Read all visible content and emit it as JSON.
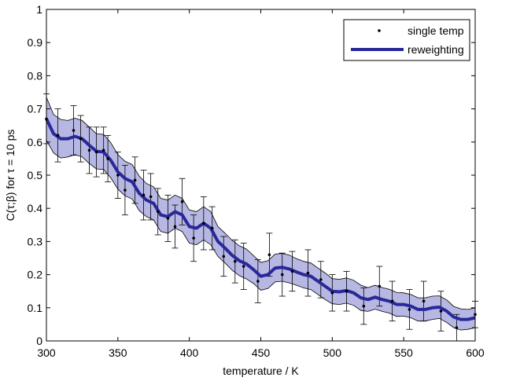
{
  "chart_data": {
    "type": "line",
    "xlabel": "temperature / K",
    "ylabel": "C(τ;β) for τ = 10 ps",
    "xlim": [
      300,
      600
    ],
    "ylim": [
      0,
      1
    ],
    "xticks": [
      300,
      350,
      400,
      450,
      500,
      550,
      600
    ],
    "yticks": [
      0,
      0.1,
      0.2,
      0.3,
      0.4,
      0.5,
      0.6,
      0.7,
      0.8,
      0.9,
      1
    ],
    "grid": false,
    "legend_position": "top-right",
    "colors": {
      "reweighting": "#28289a",
      "band_fill": "#b7b7e3",
      "band_edge": "#000000",
      "points": "#000000"
    },
    "series": [
      {
        "name": "single temp",
        "style": "points-with-errorbars",
        "points": [
          {
            "x": 300,
            "y": 0.67,
            "err": 0.075
          },
          {
            "x": 308,
            "y": 0.62,
            "err": 0.08
          },
          {
            "x": 319,
            "y": 0.635,
            "err": 0.075
          },
          {
            "x": 324,
            "y": 0.61,
            "err": 0.07
          },
          {
            "x": 330,
            "y": 0.575,
            "err": 0.07
          },
          {
            "x": 335,
            "y": 0.57,
            "err": 0.075
          },
          {
            "x": 340,
            "y": 0.575,
            "err": 0.07
          },
          {
            "x": 343,
            "y": 0.55,
            "err": 0.07
          },
          {
            "x": 350,
            "y": 0.5,
            "err": 0.07
          },
          {
            "x": 355,
            "y": 0.455,
            "err": 0.075
          },
          {
            "x": 362,
            "y": 0.485,
            "err": 0.07
          },
          {
            "x": 368,
            "y": 0.44,
            "err": 0.075
          },
          {
            "x": 373,
            "y": 0.435,
            "err": 0.07
          },
          {
            "x": 378,
            "y": 0.39,
            "err": 0.07
          },
          {
            "x": 385,
            "y": 0.37,
            "err": 0.07
          },
          {
            "x": 390,
            "y": 0.345,
            "err": 0.065
          },
          {
            "x": 395,
            "y": 0.42,
            "err": 0.07
          },
          {
            "x": 403,
            "y": 0.31,
            "err": 0.07
          },
          {
            "x": 410,
            "y": 0.355,
            "err": 0.08
          },
          {
            "x": 416,
            "y": 0.34,
            "err": 0.065
          },
          {
            "x": 424,
            "y": 0.255,
            "err": 0.06
          },
          {
            "x": 432,
            "y": 0.24,
            "err": 0.065
          },
          {
            "x": 438,
            "y": 0.225,
            "err": 0.07
          },
          {
            "x": 448,
            "y": 0.18,
            "err": 0.065
          },
          {
            "x": 456,
            "y": 0.26,
            "err": 0.065
          },
          {
            "x": 465,
            "y": 0.2,
            "err": 0.065
          },
          {
            "x": 472,
            "y": 0.21,
            "err": 0.06
          },
          {
            "x": 483,
            "y": 0.205,
            "err": 0.07
          },
          {
            "x": 492,
            "y": 0.185,
            "err": 0.055
          },
          {
            "x": 500,
            "y": 0.145,
            "err": 0.055
          },
          {
            "x": 510,
            "y": 0.15,
            "err": 0.06
          },
          {
            "x": 522,
            "y": 0.105,
            "err": 0.055
          },
          {
            "x": 533,
            "y": 0.165,
            "err": 0.06
          },
          {
            "x": 542,
            "y": 0.12,
            "err": 0.06
          },
          {
            "x": 554,
            "y": 0.095,
            "err": 0.06
          },
          {
            "x": 564,
            "y": 0.12,
            "err": 0.06
          },
          {
            "x": 576,
            "y": 0.09,
            "err": 0.06
          },
          {
            "x": 587,
            "y": 0.04,
            "err": 0.04
          },
          {
            "x": 600,
            "y": 0.08,
            "err": 0.04
          }
        ]
      },
      {
        "name": "reweighting",
        "style": "line-with-band",
        "x": [
          300,
          305,
          310,
          315,
          320,
          325,
          330,
          335,
          340,
          345,
          350,
          355,
          360,
          365,
          370,
          375,
          380,
          385,
          390,
          395,
          400,
          405,
          410,
          415,
          420,
          425,
          430,
          435,
          440,
          445,
          450,
          455,
          460,
          465,
          470,
          475,
          480,
          485,
          490,
          495,
          500,
          505,
          510,
          515,
          520,
          525,
          530,
          535,
          540,
          545,
          550,
          555,
          560,
          565,
          570,
          575,
          580,
          585,
          590,
          595,
          600
        ],
        "y": [
          0.67,
          0.625,
          0.61,
          0.61,
          0.617,
          0.61,
          0.59,
          0.572,
          0.57,
          0.545,
          0.51,
          0.49,
          0.48,
          0.445,
          0.425,
          0.415,
          0.38,
          0.375,
          0.39,
          0.38,
          0.345,
          0.34,
          0.355,
          0.34,
          0.3,
          0.28,
          0.258,
          0.242,
          0.232,
          0.215,
          0.195,
          0.2,
          0.22,
          0.222,
          0.217,
          0.208,
          0.2,
          0.195,
          0.18,
          0.165,
          0.15,
          0.148,
          0.152,
          0.145,
          0.13,
          0.125,
          0.132,
          0.125,
          0.12,
          0.11,
          0.11,
          0.105,
          0.095,
          0.095,
          0.1,
          0.102,
          0.09,
          0.072,
          0.065,
          0.065,
          0.07
        ],
        "band_halfwidth": [
          0.065,
          0.058,
          0.058,
          0.055,
          0.055,
          0.055,
          0.055,
          0.053,
          0.053,
          0.053,
          0.052,
          0.052,
          0.052,
          0.052,
          0.05,
          0.05,
          0.05,
          0.05,
          0.05,
          0.05,
          0.05,
          0.05,
          0.05,
          0.05,
          0.045,
          0.045,
          0.045,
          0.045,
          0.045,
          0.042,
          0.042,
          0.042,
          0.042,
          0.042,
          0.042,
          0.04,
          0.04,
          0.04,
          0.04,
          0.04,
          0.038,
          0.038,
          0.038,
          0.038,
          0.038,
          0.036,
          0.036,
          0.036,
          0.036,
          0.036,
          0.035,
          0.035,
          0.035,
          0.035,
          0.035,
          0.034,
          0.034,
          0.032,
          0.032,
          0.03,
          0.03
        ]
      }
    ]
  }
}
